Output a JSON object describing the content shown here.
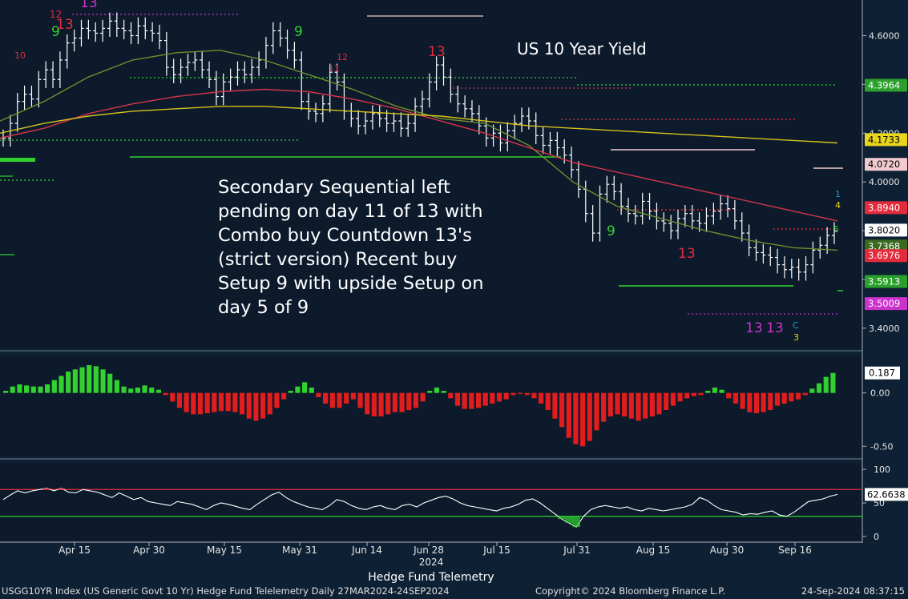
{
  "title": "US 10 Year Yield",
  "annotation": {
    "lines": [
      "Secondary Sequential left",
      "pending on day 11 of 13 with",
      "Combo buy Countdown 13's",
      "(strict version) Recent buy",
      "Setup 9 with upside Setup on",
      "day 5 of 9"
    ]
  },
  "footer": {
    "left": "USGG10YR Index (US Generic Govt 10 Yr) Hedge Fund Telelemetry  Daily 27MAR2024-24SEP2024",
    "middle": "Copyright© 2024 Bloomberg Finance L.P.",
    "right": "24-Sep-2024 08:37:15"
  },
  "chart_data": [
    {
      "type": "ohlc",
      "panel": "price",
      "title": "US 10 Year Yield",
      "x_labels": [
        "Apr 15",
        "Apr 30",
        "May 15",
        "May 31",
        "Jun 14",
        "Jun 28",
        "Jul 15",
        "Jul 31",
        "Aug 15",
        "Aug 30",
        "Sep 16"
      ],
      "year_label": "2024",
      "x_footer_label": "Hedge Fund Telemetry",
      "ylim": [
        3.35,
        4.72
      ],
      "y_ticks": [
        "3.4000",
        "3.6000",
        "3.8000",
        "4.0000",
        "4.2000",
        "4.4000",
        "4.6000"
      ],
      "close_series": [
        4.18,
        4.24,
        4.33,
        4.36,
        4.34,
        4.42,
        4.46,
        4.42,
        4.5,
        4.57,
        4.59,
        4.63,
        4.62,
        4.61,
        4.63,
        4.66,
        4.63,
        4.62,
        4.6,
        4.64,
        4.62,
        4.61,
        4.58,
        4.47,
        4.44,
        4.47,
        4.49,
        4.5,
        4.46,
        4.42,
        4.35,
        4.41,
        4.43,
        4.46,
        4.44,
        4.47,
        4.5,
        4.56,
        4.62,
        4.59,
        4.54,
        4.5,
        4.33,
        4.29,
        4.28,
        4.32,
        4.45,
        4.41,
        4.29,
        4.26,
        4.23,
        4.25,
        4.28,
        4.26,
        4.24,
        4.25,
        4.22,
        4.24,
        4.31,
        4.34,
        4.41,
        4.48,
        4.43,
        4.36,
        4.32,
        4.3,
        4.28,
        4.23,
        4.18,
        4.2,
        4.16,
        4.21,
        4.24,
        4.27,
        4.25,
        4.19,
        4.15,
        4.17,
        4.14,
        4.11,
        4.05,
        3.97,
        3.87,
        3.79,
        3.95,
        3.99,
        3.96,
        3.9,
        3.87,
        3.86,
        3.92,
        3.88,
        3.84,
        3.83,
        3.8,
        3.85,
        3.87,
        3.84,
        3.83,
        3.86,
        3.88,
        3.91,
        3.89,
        3.84,
        3.79,
        3.73,
        3.71,
        3.7,
        3.69,
        3.66,
        3.64,
        3.65,
        3.63,
        3.66,
        3.72,
        3.74,
        3.78,
        3.8
      ],
      "moving_averages": [
        {
          "name": "",
          "color": "#6f8f2f",
          "values": [
            4.25,
            4.33,
            4.43,
            4.5,
            4.53,
            4.54,
            4.5,
            4.44,
            4.38,
            4.31,
            4.26,
            4.24,
            4.15,
            4.0,
            3.9,
            3.85,
            3.8,
            3.76,
            3.73,
            3.72
          ]
        },
        {
          "name": "",
          "color": "#d8354a",
          "values": [
            4.18,
            4.22,
            4.28,
            4.32,
            4.35,
            4.37,
            4.38,
            4.37,
            4.34,
            4.3,
            4.25,
            4.2,
            4.14,
            4.08,
            4.04,
            4.0,
            3.96,
            3.92,
            3.88,
            3.84
          ]
        },
        {
          "name": "",
          "color": "#d8c21b",
          "values": [
            4.2,
            4.24,
            4.27,
            4.29,
            4.3,
            4.31,
            4.31,
            4.3,
            4.29,
            4.28,
            4.27,
            4.25,
            4.23,
            4.22,
            4.21,
            4.2,
            4.19,
            4.18,
            4.17,
            4.16
          ]
        }
      ],
      "price_labels": [
        {
          "value": "4.3964",
          "color": "#2ca02c"
        },
        {
          "value": "4.1733",
          "color": "#e8d51d"
        },
        {
          "value": "4.0720",
          "color": "#f1c9cf"
        },
        {
          "value": "3.8940",
          "color": "#e22c3d"
        },
        {
          "value": "3.8020",
          "color": "#ffffff"
        },
        {
          "value": "3.7368",
          "color": "#3a6b20"
        },
        {
          "value": "3.6976",
          "color": "#e22c3d"
        },
        {
          "value": "3.5913",
          "color": "#2ca02c"
        },
        {
          "value": "3.5009",
          "color": "#cc33cc"
        }
      ],
      "td_labels": [
        {
          "text": "9",
          "color": "#31d22f"
        },
        {
          "text": "13",
          "color": "#e22c3d"
        },
        {
          "text": "13",
          "color": "#cc33cc"
        },
        {
          "text": "12",
          "color": "#e22c3d"
        },
        {
          "text": "10",
          "color": "#e22c3d"
        },
        {
          "text": "9",
          "color": "#31d22f"
        },
        {
          "text": "13",
          "color": "#e22c3d"
        },
        {
          "text": "12",
          "color": "#e22c3d"
        },
        {
          "text": "11",
          "color": "#e22c3d"
        },
        {
          "text": "9",
          "color": "#31d22f"
        },
        {
          "text": "13",
          "color": "#e22c3d"
        },
        {
          "text": "13",
          "color": "#cc33cc"
        },
        {
          "text": "13",
          "color": "#cc33cc"
        },
        {
          "text": "1",
          "color": "#1e9bd8"
        },
        {
          "text": "4",
          "color": "#e8d51d"
        },
        {
          "text": "5",
          "color": "#31d22f"
        },
        {
          "text": "C",
          "color": "#1e9bd8"
        },
        {
          "text": "3",
          "color": "#e8d51d"
        }
      ]
    },
    {
      "type": "bar",
      "panel": "histogram",
      "ylim": [
        -0.58,
        0.32
      ],
      "y_ticks": [
        "0.00",
        "-0.50"
      ],
      "last_value": "0.187",
      "values": [
        0.02,
        0.06,
        0.08,
        0.07,
        0.06,
        0.06,
        0.08,
        0.12,
        0.16,
        0.2,
        0.22,
        0.24,
        0.26,
        0.25,
        0.22,
        0.18,
        0.12,
        0.06,
        0.04,
        0.05,
        0.07,
        0.05,
        0.03,
        -0.02,
        -0.08,
        -0.14,
        -0.18,
        -0.2,
        -0.2,
        -0.19,
        -0.18,
        -0.17,
        -0.17,
        -0.18,
        -0.2,
        -0.24,
        -0.26,
        -0.24,
        -0.2,
        -0.14,
        -0.06,
        0.02,
        0.06,
        0.1,
        0.05,
        -0.04,
        -0.1,
        -0.14,
        -0.14,
        -0.1,
        -0.06,
        -0.14,
        -0.2,
        -0.22,
        -0.22,
        -0.2,
        -0.18,
        -0.18,
        -0.16,
        -0.14,
        -0.08,
        0.02,
        0.05,
        0.02,
        -0.05,
        -0.12,
        -0.15,
        -0.15,
        -0.14,
        -0.12,
        -0.1,
        -0.08,
        -0.06,
        -0.02,
        -0.01,
        -0.02,
        -0.05,
        -0.1,
        -0.16,
        -0.24,
        -0.32,
        -0.42,
        -0.48,
        -0.5,
        -0.45,
        -0.35,
        -0.27,
        -0.22,
        -0.2,
        -0.22,
        -0.24,
        -0.26,
        -0.24,
        -0.22,
        -0.2,
        -0.16,
        -0.12,
        -0.08,
        -0.05,
        -0.03,
        -0.02,
        0.02,
        0.05,
        0.03,
        -0.05,
        -0.1,
        -0.15,
        -0.18,
        -0.19,
        -0.18,
        -0.16,
        -0.12,
        -0.1,
        -0.08,
        -0.06,
        -0.02,
        0.04,
        0.09,
        0.15,
        0.187
      ]
    },
    {
      "type": "line",
      "panel": "oscillator",
      "ylim": [
        -5,
        105
      ],
      "y_ticks": [
        "100",
        "50",
        "0"
      ],
      "last_value": "62.6638",
      "upper_band": 70,
      "lower_band": 30,
      "values": [
        55,
        62,
        68,
        65,
        68,
        70,
        72,
        68,
        72,
        66,
        65,
        70,
        68,
        66,
        62,
        58,
        65,
        60,
        55,
        58,
        52,
        50,
        48,
        46,
        52,
        50,
        48,
        44,
        40,
        46,
        50,
        48,
        45,
        42,
        40,
        48,
        55,
        62,
        66,
        58,
        52,
        48,
        44,
        42,
        40,
        46,
        55,
        52,
        46,
        42,
        40,
        44,
        46,
        42,
        40,
        46,
        48,
        44,
        50,
        54,
        58,
        60,
        56,
        50,
        46,
        44,
        42,
        40,
        38,
        42,
        44,
        48,
        54,
        56,
        50,
        42,
        34,
        26,
        20,
        14,
        30,
        40,
        44,
        46,
        44,
        42,
        44,
        40,
        38,
        42,
        40,
        38,
        40,
        42,
        44,
        48,
        58,
        54,
        46,
        40,
        38,
        36,
        32,
        34,
        33,
        36,
        38,
        32,
        30,
        36,
        44,
        52,
        54,
        56,
        60,
        62.66
      ]
    }
  ]
}
